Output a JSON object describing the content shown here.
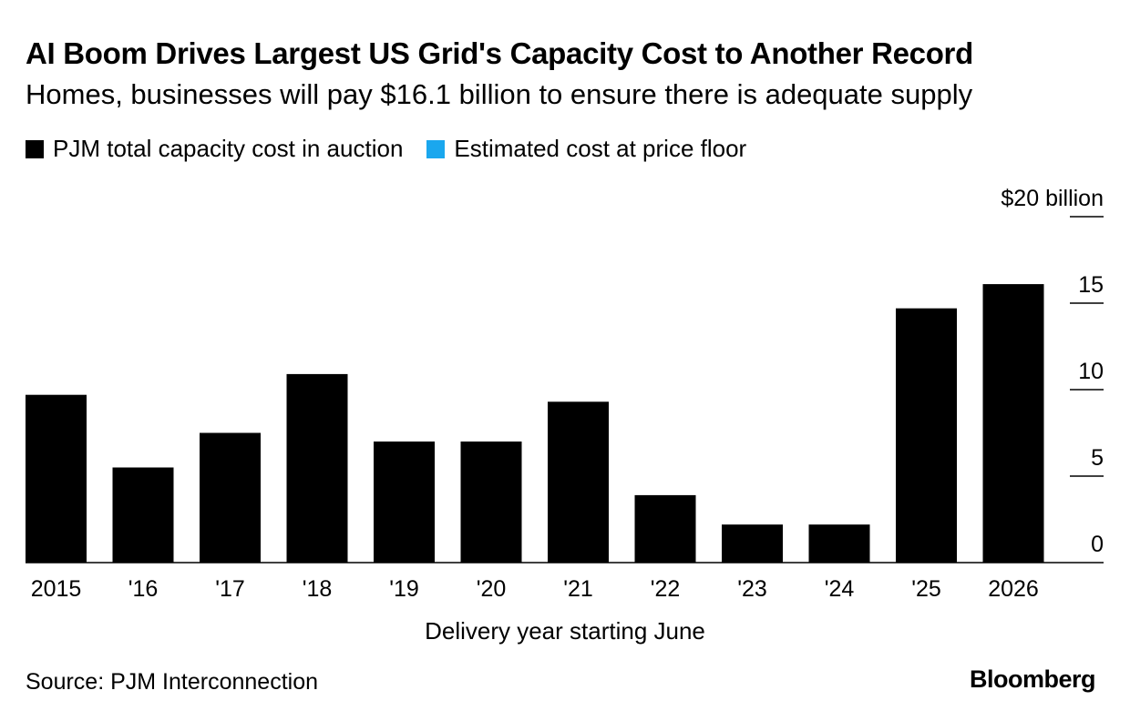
{
  "header": {
    "title": "AI Boom Drives Largest US Grid's Capacity Cost to Another Record",
    "subtitle": "Homes, businesses will pay $16.1 billion to ensure there is adequate supply"
  },
  "legend": {
    "items": [
      {
        "label": "PJM total capacity cost in auction",
        "color": "#000000"
      },
      {
        "label": "Estimated cost at price floor",
        "color": "#1aa7ee"
      }
    ]
  },
  "footer": {
    "source": "Source: PJM Interconnection",
    "brand": "Bloomberg"
  },
  "chart_data": {
    "type": "bar",
    "categories": [
      "2015",
      "'16",
      "'17",
      "'18",
      "'19",
      "'20",
      "'21",
      "'22",
      "'23",
      "'24",
      "'25",
      "2026"
    ],
    "series": [
      {
        "name": "PJM total capacity cost in auction",
        "color": "#000000",
        "values": [
          9.7,
          5.5,
          7.5,
          10.9,
          7.0,
          7.0,
          9.3,
          3.9,
          2.2,
          2.2,
          14.7,
          16.1
        ]
      }
    ],
    "xlabel": "Delivery year starting June",
    "ylabel": "",
    "ylim": [
      0,
      20
    ],
    "yticks": [
      0,
      5,
      10,
      15,
      20
    ],
    "ytick_labels": [
      "0",
      "5",
      "10",
      "15",
      "$20 billion"
    ],
    "yaxis_position": "right",
    "grid": false
  }
}
